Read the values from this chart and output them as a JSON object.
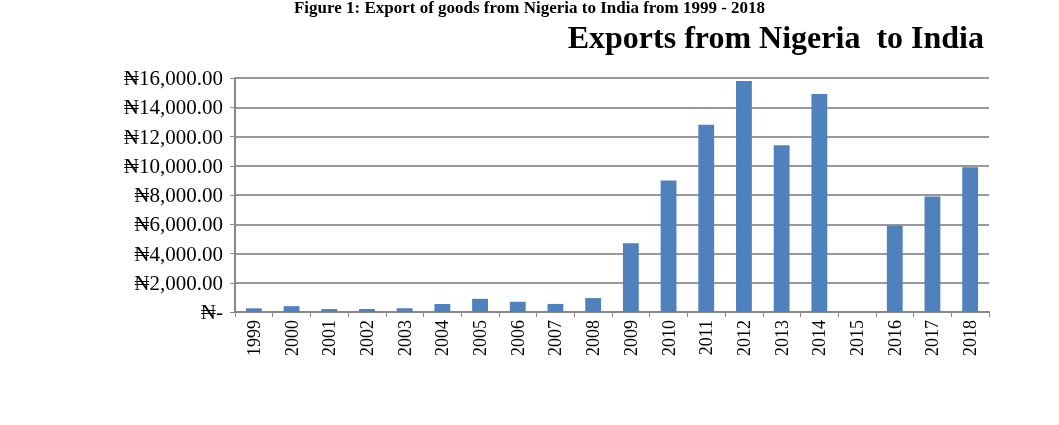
{
  "chart_data": {
    "type": "bar",
    "title": "Exports from Nigeria  to India",
    "annotations": [
      "Figure 1: Export of goods from Nigeria to India from 1999 - 2018"
    ],
    "categories": [
      "1999",
      "2000",
      "2001",
      "2002",
      "2003",
      "2004",
      "2005",
      "2006",
      "2007",
      "2008",
      "2009",
      "2010",
      "2011",
      "2012",
      "2013",
      "2014",
      "2015",
      "2016",
      "2017",
      "2018"
    ],
    "series": [
      {
        "color": "#4f81bd",
        "values": [
          250,
          400,
          200,
          200,
          250,
          550,
          900,
          700,
          550,
          950,
          4700,
          9000,
          12800,
          15800,
          11400,
          14900,
          0,
          5900,
          7900,
          9900
        ]
      }
    ],
    "ylim": [
      0,
      16000
    ],
    "yticks": [
      {
        "value": 0,
        "label": "₦-"
      },
      {
        "value": 2000,
        "label": "₦2,000.00"
      },
      {
        "value": 4000,
        "label": "₦4,000.00"
      },
      {
        "value": 6000,
        "label": "₦6,000.00"
      },
      {
        "value": 8000,
        "label": "₦8,000.00"
      },
      {
        "value": 10000,
        "label": "₦10,000.00"
      },
      {
        "value": 12000,
        "label": "₦12,000.00"
      },
      {
        "value": 14000,
        "label": "₦14,000.00"
      },
      {
        "value": 16000,
        "label": "₦16,000.00"
      }
    ],
    "grid": "y"
  }
}
